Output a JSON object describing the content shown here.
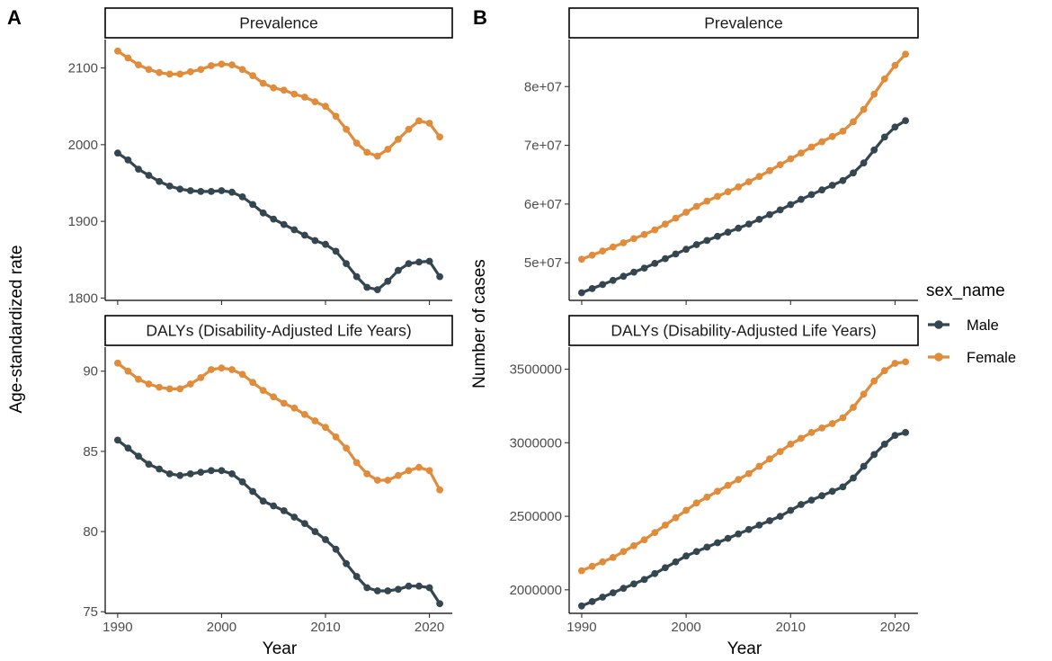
{
  "panel_letters": {
    "a": "A",
    "b": "B"
  },
  "axis_titles": {
    "x": "Year",
    "y_left": "Age-standardized rate",
    "y_right": "Number of cases"
  },
  "legend": {
    "title": "sex_name",
    "items": [
      {
        "label": "Male",
        "color": "#34464f"
      },
      {
        "label": "Female",
        "color": "#e08c3a"
      }
    ]
  },
  "x_ticks": [
    "1990",
    "2000",
    "2010",
    "2020"
  ],
  "chart_data": [
    {
      "type": "line",
      "panel": "A",
      "title": "Prevalence",
      "xlabel": "Year",
      "ylabel": "Age-standardized rate",
      "xlim": [
        1988.8,
        2022.2
      ],
      "ylim": [
        1797,
        2137
      ],
      "yticks": [
        1800,
        1900,
        2000,
        2100
      ],
      "ytick_labels": [
        "1800",
        "1900",
        "2000",
        "2100"
      ],
      "x": [
        1990,
        1991,
        1992,
        1993,
        1994,
        1995,
        1996,
        1997,
        1998,
        1999,
        2000,
        2001,
        2002,
        2003,
        2004,
        2005,
        2006,
        2007,
        2008,
        2009,
        2010,
        2011,
        2012,
        2013,
        2014,
        2015,
        2016,
        2017,
        2018,
        2019,
        2020,
        2021
      ],
      "series": [
        {
          "name": "Male",
          "color": "#34464f",
          "values": [
            1989,
            1980,
            1968,
            1960,
            1952,
            1946,
            1942,
            1940,
            1939,
            1939,
            1940,
            1938,
            1932,
            1922,
            1911,
            1903,
            1896,
            1889,
            1882,
            1875,
            1870,
            1861,
            1845,
            1828,
            1814,
            1811,
            1822,
            1836,
            1845,
            1847,
            1848,
            1828
          ]
        },
        {
          "name": "Female",
          "color": "#e08c3a",
          "values": [
            2122,
            2113,
            2104,
            2098,
            2094,
            2092,
            2092,
            2095,
            2098,
            2103,
            2105,
            2104,
            2098,
            2090,
            2080,
            2074,
            2071,
            2066,
            2062,
            2056,
            2050,
            2037,
            2020,
            2002,
            1990,
            1985,
            1994,
            2007,
            2020,
            2031,
            2028,
            2010
          ]
        }
      ]
    },
    {
      "type": "line",
      "panel": "A",
      "title": "DALYs (Disability-Adjusted Life Years)",
      "xlabel": "Year",
      "ylabel": "Age-standardized rate",
      "xlim": [
        1988.8,
        2022.2
      ],
      "ylim": [
        74.9,
        91.5
      ],
      "yticks": [
        75,
        80,
        85,
        90
      ],
      "ytick_labels": [
        "75",
        "80",
        "85",
        "90"
      ],
      "x": [
        1990,
        1991,
        1992,
        1993,
        1994,
        1995,
        1996,
        1997,
        1998,
        1999,
        2000,
        2001,
        2002,
        2003,
        2004,
        2005,
        2006,
        2007,
        2008,
        2009,
        2010,
        2011,
        2012,
        2013,
        2014,
        2015,
        2016,
        2017,
        2018,
        2019,
        2020,
        2021
      ],
      "series": [
        {
          "name": "Male",
          "color": "#34464f",
          "values": [
            85.7,
            85.2,
            84.7,
            84.2,
            83.9,
            83.6,
            83.5,
            83.6,
            83.7,
            83.8,
            83.8,
            83.6,
            83.1,
            82.5,
            81.9,
            81.6,
            81.3,
            80.9,
            80.5,
            80.0,
            79.5,
            78.9,
            78.0,
            77.2,
            76.5,
            76.3,
            76.3,
            76.4,
            76.6,
            76.6,
            76.5,
            75.5
          ]
        },
        {
          "name": "Female",
          "color": "#e08c3a",
          "values": [
            90.5,
            90.0,
            89.5,
            89.2,
            89.0,
            88.9,
            88.9,
            89.2,
            89.6,
            90.1,
            90.2,
            90.1,
            89.8,
            89.3,
            88.8,
            88.4,
            88.0,
            87.7,
            87.3,
            86.9,
            86.5,
            85.9,
            85.2,
            84.3,
            83.6,
            83.2,
            83.2,
            83.5,
            83.8,
            84.0,
            83.8,
            82.6
          ]
        }
      ]
    },
    {
      "type": "line",
      "panel": "B",
      "title": "Prevalence",
      "xlabel": "Year",
      "ylabel": "Number of cases",
      "xlim": [
        1988.8,
        2022.2
      ],
      "ylim": [
        43600000,
        88000000
      ],
      "yticks": [
        50000000,
        60000000,
        70000000,
        80000000
      ],
      "ytick_labels": [
        "5e+07",
        "6e+07",
        "7e+07",
        "8e+07"
      ],
      "x": [
        1990,
        1991,
        1992,
        1993,
        1994,
        1995,
        1996,
        1997,
        1998,
        1999,
        2000,
        2001,
        2002,
        2003,
        2004,
        2005,
        2006,
        2007,
        2008,
        2009,
        2010,
        2011,
        2012,
        2013,
        2014,
        2015,
        2016,
        2017,
        2018,
        2019,
        2020,
        2021
      ],
      "series": [
        {
          "name": "Male",
          "color": "#34464f",
          "values": [
            44900000,
            45600000,
            46300000,
            47000000,
            47700000,
            48400000,
            49100000,
            49900000,
            50700000,
            51500000,
            52300000,
            53100000,
            53800000,
            54500000,
            55200000,
            55900000,
            56600000,
            57400000,
            58200000,
            59000000,
            59900000,
            60800000,
            61600000,
            62400000,
            63200000,
            64000000,
            65300000,
            67000000,
            69200000,
            71400000,
            73100000,
            74200000
          ]
        },
        {
          "name": "Female",
          "color": "#e08c3a",
          "values": [
            50600000,
            51300000,
            52000000,
            52700000,
            53400000,
            54100000,
            54800000,
            55600000,
            56600000,
            57600000,
            58600000,
            59600000,
            60500000,
            61300000,
            62100000,
            62900000,
            63800000,
            64700000,
            65700000,
            66700000,
            67700000,
            68700000,
            69700000,
            70600000,
            71500000,
            72400000,
            74000000,
            76100000,
            78700000,
            81300000,
            83600000,
            85500000
          ]
        }
      ]
    },
    {
      "type": "line",
      "panel": "B",
      "title": "DALYs (Disability-Adjusted Life Years)",
      "xlabel": "Year",
      "ylabel": "Number of cases",
      "xlim": [
        1988.8,
        2022.2
      ],
      "ylim": [
        1840000,
        3650000
      ],
      "yticks": [
        2000000,
        2500000,
        3000000,
        3500000
      ],
      "ytick_labels": [
        "2000000",
        "2500000",
        "3000000",
        "3500000"
      ],
      "x": [
        1990,
        1991,
        1992,
        1993,
        1994,
        1995,
        1996,
        1997,
        1998,
        1999,
        2000,
        2001,
        2002,
        2003,
        2004,
        2005,
        2006,
        2007,
        2008,
        2009,
        2010,
        2011,
        2012,
        2013,
        2014,
        2015,
        2016,
        2017,
        2018,
        2019,
        2020,
        2021
      ],
      "series": [
        {
          "name": "Male",
          "color": "#34464f",
          "values": [
            1890000,
            1920000,
            1950000,
            1980000,
            2010000,
            2040000,
            2070000,
            2110000,
            2150000,
            2190000,
            2230000,
            2260000,
            2290000,
            2320000,
            2350000,
            2380000,
            2410000,
            2440000,
            2470000,
            2500000,
            2540000,
            2580000,
            2610000,
            2640000,
            2670000,
            2700000,
            2760000,
            2840000,
            2920000,
            2990000,
            3050000,
            3070000
          ]
        },
        {
          "name": "Female",
          "color": "#e08c3a",
          "values": [
            2130000,
            2160000,
            2190000,
            2220000,
            2260000,
            2300000,
            2340000,
            2390000,
            2440000,
            2490000,
            2540000,
            2590000,
            2630000,
            2670000,
            2710000,
            2750000,
            2790000,
            2840000,
            2890000,
            2940000,
            2990000,
            3030000,
            3070000,
            3100000,
            3130000,
            3170000,
            3240000,
            3330000,
            3420000,
            3490000,
            3540000,
            3550000
          ]
        }
      ]
    }
  ]
}
